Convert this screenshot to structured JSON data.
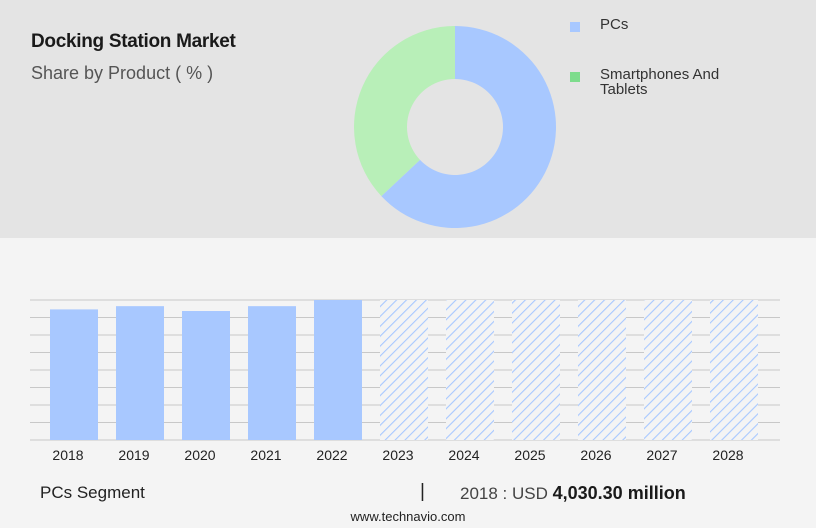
{
  "header": {
    "title": "Docking Station Market",
    "subtitle": "Share by Product ( % )"
  },
  "colors": {
    "pcs": "#a8c8ff",
    "smartphones_donut": "#b8efb8",
    "smartphones_legend": "#7ddc8c",
    "hatch": "#a8c8ff",
    "grid": "#c8c8c8"
  },
  "chart_data": [
    {
      "type": "pie",
      "donut": true,
      "categories": [
        "PCs",
        "Smartphones And Tablets"
      ],
      "values": [
        63,
        37
      ],
      "legend_position": "right"
    },
    {
      "type": "bar",
      "categories": [
        "2018",
        "2019",
        "2020",
        "2021",
        "2022",
        "2023",
        "2024",
        "2025",
        "2026",
        "2027",
        "2028"
      ],
      "values": [
        4030.3,
        4130,
        3980,
        4130,
        4320,
        null,
        null,
        null,
        null,
        null,
        null
      ],
      "forecast": [
        false,
        false,
        false,
        false,
        false,
        true,
        true,
        true,
        true,
        true,
        true
      ],
      "ylim": [
        0,
        4320
      ],
      "grid": true
    }
  ],
  "footer": {
    "segment": "PCs Segment",
    "separator": "|",
    "value_prefix": "2018 : USD",
    "value": "4,030.30 million",
    "url": "www.technavio.com"
  }
}
